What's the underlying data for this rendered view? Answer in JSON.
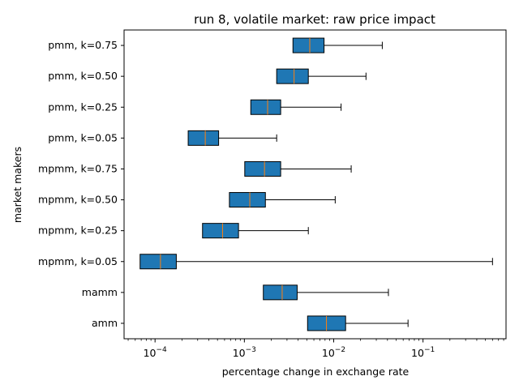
{
  "chart_data": {
    "type": "boxplot",
    "orientation": "horizontal",
    "title": "run 8, volatile market: raw price impact",
    "xlabel": "percentage change in exchange rate",
    "ylabel": "market makers",
    "xscale": "log",
    "xlim": [
      4.5e-05,
      0.85
    ],
    "xticks": [
      {
        "base": "10",
        "exp": "−4",
        "value": 0.0001
      },
      {
        "base": "10",
        "exp": "−3",
        "value": 0.001
      },
      {
        "base": "10",
        "exp": "−2",
        "value": 0.01
      },
      {
        "base": "10",
        "exp": "−1",
        "value": 0.1
      }
    ],
    "grid": false,
    "box_color": "#1f77b4",
    "median_color": "#ff7f0e",
    "boxes": [
      {
        "label": "pmm, k=0.75",
        "whislo": 0.0035,
        "q1": 0.0035,
        "med": 0.0054,
        "q3": 0.0078,
        "whishi": 0.035
      },
      {
        "label": "pmm, k=0.50",
        "whislo": 0.0023,
        "q1": 0.0023,
        "med": 0.0036,
        "q3": 0.0052,
        "whishi": 0.023
      },
      {
        "label": "pmm, k=0.25",
        "whislo": 0.00118,
        "q1": 0.00118,
        "med": 0.00182,
        "q3": 0.00255,
        "whishi": 0.0121
      },
      {
        "label": "pmm, k=0.05",
        "whislo": 0.000235,
        "q1": 0.000235,
        "med": 0.000365,
        "q3": 0.000515,
        "whishi": 0.0023
      },
      {
        "label": "mpmm, k=0.75",
        "whislo": 0.00101,
        "q1": 0.00101,
        "med": 0.00168,
        "q3": 0.00255,
        "whishi": 0.0157
      },
      {
        "label": "mpmm, k=0.50",
        "whislo": 0.00068,
        "q1": 0.00068,
        "med": 0.00115,
        "q3": 0.00172,
        "whishi": 0.0104
      },
      {
        "label": "mpmm, k=0.25",
        "whislo": 0.00034,
        "q1": 0.00034,
        "med": 0.00057,
        "q3": 0.00086,
        "whishi": 0.0052
      },
      {
        "label": "mpmm, k=0.05",
        "whislo": 6.8e-05,
        "q1": 6.8e-05,
        "med": 0.000115,
        "q3": 0.000173,
        "whishi": 0.6
      },
      {
        "label": "mamm",
        "whislo": 0.00163,
        "q1": 0.00163,
        "med": 0.00265,
        "q3": 0.0039,
        "whishi": 0.041
      },
      {
        "label": "amm",
        "whislo": 0.0051,
        "q1": 0.0051,
        "med": 0.0083,
        "q3": 0.0136,
        "whishi": 0.068
      }
    ]
  }
}
